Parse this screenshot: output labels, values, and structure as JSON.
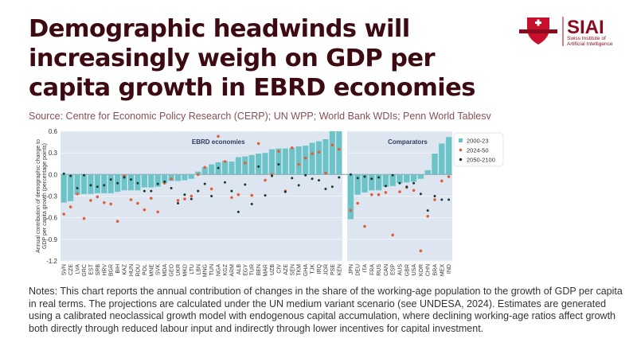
{
  "title": "Demographic headwinds will increasingly weigh on GDP per capita growth in EBRD economies",
  "source": "Source: Centre for Economic Policy Research (CERP); UN WPP; World Bank WDIs; Penn World Tablesv",
  "notes": "Notes: This chart reports the annual contribution of changes in the share of the working-age population to the growth of GDP per capita in real terms. The projections are calculated under the UN medium variant scenario (see UNDESA, 2024). Estimates are generated using a calibrated neoclassical growth model with endogenous capital accumulation, where declining working-age ratios affect growth both directly through reduced labour input and indirectly through lower incentives for capital investment.",
  "logo": {
    "name": "SIAI",
    "subtitle": "Swiss Institute of Artificial Intelligence"
  },
  "chart_data": {
    "type": "bar",
    "ylabel": "Annual contribution of demographic change to GDP per capita growth (percentage points)",
    "ylim": [
      -1.2,
      0.6
    ],
    "yticks": [
      "0.6",
      "0.3",
      "0.0",
      "-0.3",
      "-0.6",
      "-0.9",
      "-1.2"
    ],
    "grid": true,
    "legend_position": "top-right",
    "legend": [
      "2000-23",
      "2024-50",
      "2050-2100"
    ],
    "colors": {
      "2000-23": "#6cc4c9",
      "2024-50": "#e0603a",
      "2050-2100": "#143a2c",
      "panel": "#dde5f1"
    },
    "panels": [
      {
        "label": "EBRD economies",
        "categories": [
          "SVN",
          "CZE",
          "LVA",
          "GRC",
          "EST",
          "SRB",
          "HRV",
          "BGR",
          "BIH",
          "KAZ",
          "HUN",
          "ROU",
          "POL",
          "MNE",
          "SVK",
          "MDA",
          "GEO",
          "UKR",
          "MKD",
          "LTU",
          "LBN",
          "MNG",
          "TUN",
          "NGA",
          "KGZ",
          "ARM",
          "ALB",
          "EGY",
          "TUR",
          "BEN",
          "MAR",
          "UZB",
          "CIV",
          "AZE",
          "SEN",
          "TKM",
          "GHA",
          "TJK",
          "IRQ",
          "JOR",
          "PSE",
          "KEN"
        ],
        "series": [
          {
            "name": "2000-23",
            "values": [
              -0.39,
              -0.37,
              -0.28,
              -0.27,
              -0.27,
              -0.26,
              -0.26,
              -0.26,
              -0.24,
              -0.22,
              -0.22,
              -0.22,
              -0.18,
              -0.18,
              -0.17,
              -0.12,
              -0.09,
              -0.09,
              -0.08,
              -0.06,
              0.04,
              0.1,
              0.14,
              0.17,
              0.19,
              0.18,
              0.24,
              0.25,
              0.27,
              0.29,
              0.3,
              0.35,
              0.36,
              0.36,
              0.37,
              0.39,
              0.4,
              0.44,
              0.46,
              0.49,
              0.6,
              0.6
            ]
          },
          {
            "name": "2024-50",
            "values": [
              -0.55,
              -0.45,
              -0.27,
              -0.61,
              -0.36,
              -0.31,
              -0.39,
              -0.41,
              -0.65,
              -0.02,
              -0.35,
              -0.4,
              -0.49,
              -0.33,
              -0.52,
              -0.12,
              -0.06,
              -0.36,
              -0.34,
              -0.3,
              0.0,
              0.1,
              -0.2,
              0.53,
              0.18,
              -0.32,
              -0.28,
              0.16,
              -0.29,
              0.43,
              -0.08,
              0.0,
              0.32,
              -0.23,
              0.37,
              0.14,
              0.23,
              0.29,
              0.31,
              0.02,
              0.41,
              0.35
            ]
          },
          {
            "name": "2050-2100",
            "values": [
              0.01,
              -0.02,
              -0.19,
              -0.01,
              -0.15,
              -0.17,
              -0.15,
              -0.07,
              -0.12,
              -0.04,
              -0.07,
              -0.12,
              -0.23,
              -0.23,
              -0.13,
              -0.1,
              -0.19,
              -0.4,
              -0.28,
              -0.34,
              -0.23,
              -0.13,
              -0.3,
              0.09,
              -0.11,
              -0.23,
              -0.52,
              -0.14,
              -0.41,
              0.11,
              -0.29,
              -0.02,
              0.14,
              -0.24,
              -0.05,
              -0.15,
              -0.01,
              -0.06,
              -0.08,
              -0.2,
              -0.17,
              -0.04
            ]
          }
        ]
      },
      {
        "label": "Comparators",
        "categories": [
          "JPN",
          "DEU",
          "ITA",
          "FRA",
          "RUS",
          "CAN",
          "ESP",
          "AUS",
          "GBR",
          "USA",
          "KOR",
          "CHN",
          "BRA",
          "MEX",
          "IND"
        ],
        "series": [
          {
            "name": "2000-23",
            "values": [
              -0.62,
              -0.28,
              -0.25,
              -0.22,
              -0.22,
              -0.17,
              -0.16,
              -0.12,
              -0.11,
              -0.1,
              -0.06,
              0.06,
              0.29,
              0.43,
              0.52
            ]
          },
          {
            "name": "2024-50",
            "values": [
              -0.5,
              -0.4,
              -0.72,
              -0.28,
              -0.28,
              -0.25,
              -0.84,
              -0.24,
              -0.18,
              -0.22,
              -1.06,
              -0.58,
              -0.35,
              -0.09,
              -0.03
            ]
          },
          {
            "name": "2050-2100",
            "values": [
              0.0,
              -0.05,
              -0.03,
              -0.06,
              -0.04,
              -0.16,
              -0.01,
              -0.12,
              -0.17,
              -0.12,
              -0.27,
              -0.5,
              -0.3,
              -0.35,
              -0.35
            ]
          }
        ]
      }
    ]
  }
}
